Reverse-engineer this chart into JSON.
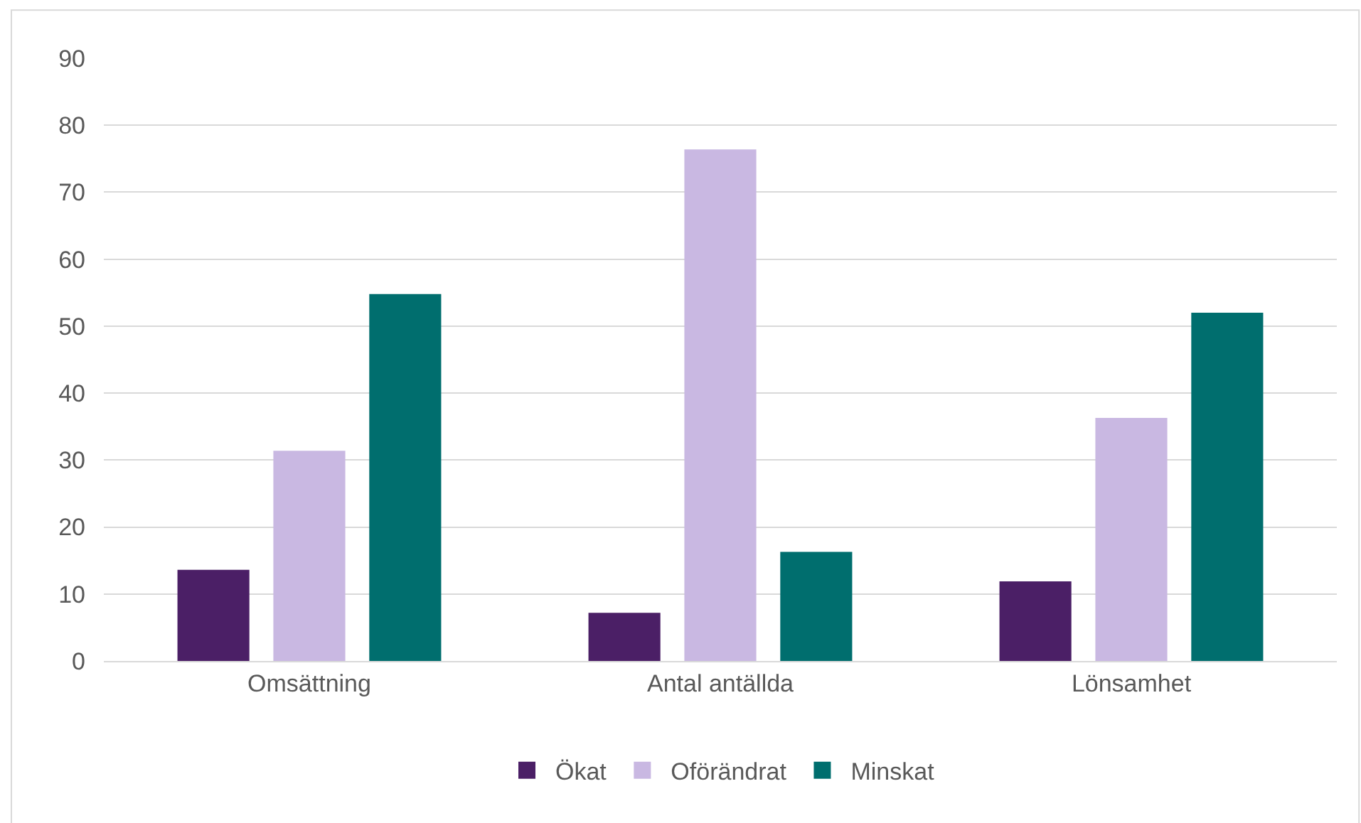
{
  "chart_data": {
    "type": "bar",
    "categories": [
      "Omsättning",
      "Antal antällda",
      "Lönsamhet"
    ],
    "series": [
      {
        "name": "Ökat",
        "color": "#4b1f66",
        "values": [
          13.6,
          7.2,
          11.9
        ]
      },
      {
        "name": "Oförändrat",
        "color": "#c9b8e2",
        "values": [
          31.4,
          76.4,
          36.3
        ]
      },
      {
        "name": "Minskat",
        "color": "#006e6e",
        "values": [
          54.8,
          16.3,
          52.0
        ]
      }
    ],
    "ylim": [
      0,
      90
    ],
    "yticks": [
      0,
      10,
      20,
      30,
      40,
      50,
      60,
      70,
      80,
      90
    ],
    "grid": "y",
    "legend": "bottom"
  }
}
